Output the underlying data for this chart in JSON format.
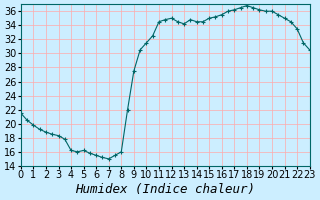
{
  "title": "",
  "xlabel": "Humidex (Indice chaleur)",
  "ylabel": "",
  "x_values": [
    0,
    0.5,
    1,
    1.5,
    2,
    2.5,
    3,
    3.5,
    4,
    4.5,
    5,
    5.5,
    6,
    6.5,
    7,
    7.5,
    8,
    8.5,
    9,
    9.5,
    10,
    10.5,
    11,
    11.5,
    12,
    12.5,
    13,
    13.5,
    14,
    14.5,
    15,
    15.5,
    16,
    16.5,
    17,
    17.5,
    18,
    18.5,
    19,
    19.5,
    20,
    20.5,
    21,
    21.5,
    22,
    22.5,
    23
  ],
  "y_values": [
    21.5,
    20.5,
    19.8,
    19.2,
    18.8,
    18.5,
    18.3,
    17.8,
    16.2,
    16.0,
    16.2,
    15.8,
    15.5,
    15.2,
    15.0,
    15.5,
    16.0,
    22.0,
    27.5,
    30.5,
    31.5,
    32.5,
    34.5,
    34.8,
    35.0,
    34.5,
    34.2,
    34.8,
    34.5,
    34.5,
    35.0,
    35.2,
    35.5,
    36.0,
    36.2,
    36.5,
    36.8,
    36.5,
    36.2,
    36.0,
    36.0,
    35.5,
    35.0,
    34.5,
    33.5,
    31.5,
    30.5
  ],
  "line_color": "#006666",
  "marker_color": "#006666",
  "bg_color": "#cceeff",
  "grid_color": "#ffaaaa",
  "axis_bg": "#cceeff",
  "ylim": [
    14,
    37
  ],
  "xlim": [
    0,
    23
  ],
  "yticks": [
    14,
    16,
    18,
    20,
    22,
    24,
    26,
    28,
    30,
    32,
    34,
    36
  ],
  "xticks": [
    0,
    1,
    2,
    3,
    4,
    5,
    6,
    7,
    8,
    9,
    10,
    11,
    12,
    13,
    14,
    15,
    16,
    17,
    18,
    19,
    20,
    21,
    22,
    23
  ],
  "xlabel_fontsize": 9,
  "tick_fontsize": 7
}
